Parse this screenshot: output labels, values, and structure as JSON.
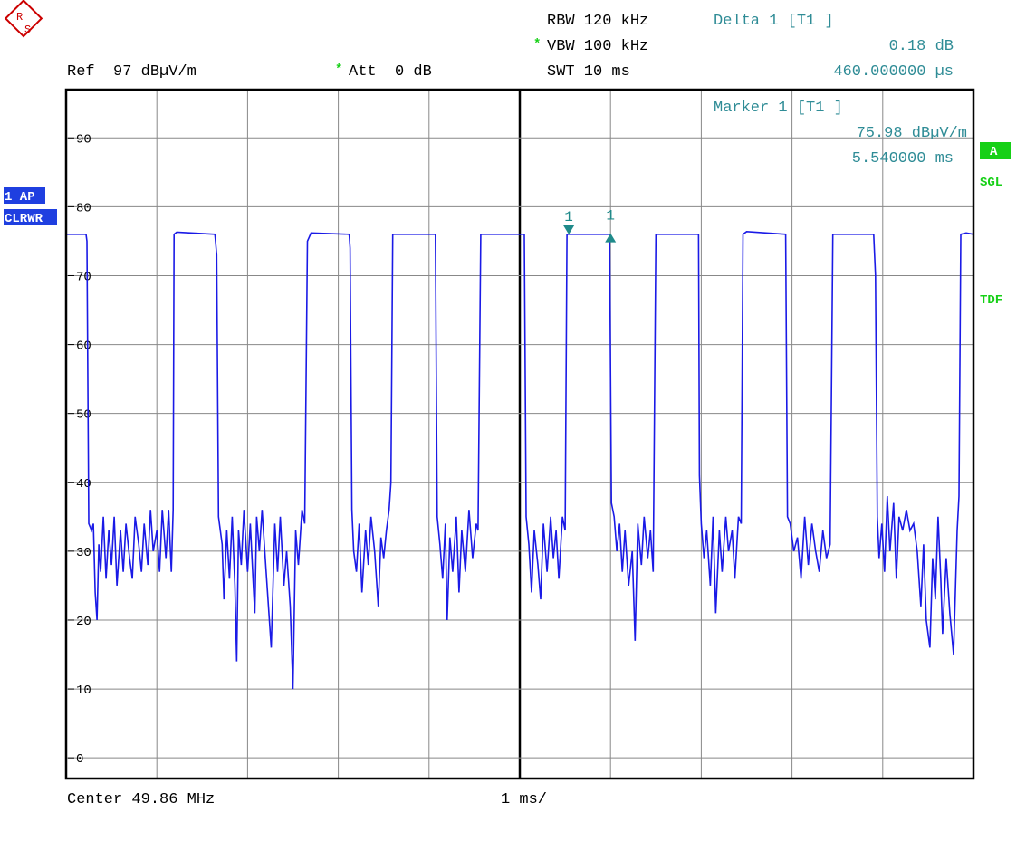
{
  "logo": [
    "R",
    "S"
  ],
  "header": {
    "rbw": "RBW 120 kHz",
    "vbw_star": "*",
    "vbw": "VBW 100 kHz",
    "swt": "SWT 10 ms",
    "ref": "Ref  97 dBµV/m",
    "att_star": "*",
    "att": "Att  0 dB",
    "delta_title": "Delta 1 [T1 ]",
    "delta_level": "0.18 dB",
    "delta_time": "460.000000 µs"
  },
  "marker_info": {
    "title": "Marker 1 [T1 ]",
    "level": "75.98 dBµV/m",
    "time": "5.540000 ms"
  },
  "side": {
    "trace": "1 AP",
    "mode": "CLRWR",
    "a": "A",
    "sgl": "SGL",
    "tdf": "TDF"
  },
  "footer": {
    "center": "Center 49.86 MHz",
    "span": "1 ms/"
  },
  "chart_data": {
    "type": "line",
    "xlim": [
      0,
      10
    ],
    "xticks": [
      0,
      1,
      2,
      3,
      4,
      5,
      6,
      7,
      8,
      9,
      10
    ],
    "ylim": [
      -3,
      97
    ],
    "yticks": [
      0,
      10,
      20,
      30,
      40,
      50,
      60,
      70,
      80,
      90
    ],
    "grid": true,
    "series": [
      {
        "color": "#1a1ae6",
        "x": [
          0,
          0.22,
          0.23,
          0.25,
          0.28,
          0.3,
          0.32,
          0.34,
          0.36,
          0.38,
          0.41,
          0.44,
          0.47,
          0.5,
          0.53,
          0.56,
          0.6,
          0.63,
          0.66,
          0.7,
          0.73,
          0.76,
          0.8,
          0.83,
          0.86,
          0.9,
          0.93,
          0.96,
          1.0,
          1.03,
          1.06,
          1.1,
          1.13,
          1.16,
          1.18,
          1.19,
          1.22,
          1.64,
          1.66,
          1.68,
          1.72,
          1.74,
          1.77,
          1.8,
          1.83,
          1.86,
          1.88,
          1.9,
          1.93,
          1.96,
          2.0,
          2.03,
          2.06,
          2.08,
          2.1,
          2.13,
          2.16,
          2.2,
          2.26,
          2.3,
          2.33,
          2.36,
          2.4,
          2.43,
          2.47,
          2.5,
          2.53,
          2.56,
          2.6,
          2.63,
          2.66,
          2.7,
          3.12,
          3.13,
          3.15,
          3.17,
          3.2,
          3.23,
          3.26,
          3.3,
          3.33,
          3.36,
          3.4,
          3.44,
          3.47,
          3.5,
          3.53,
          3.56,
          3.58,
          3.6,
          4.07,
          4.09,
          4.12,
          4.15,
          4.18,
          4.2,
          4.23,
          4.26,
          4.3,
          4.33,
          4.36,
          4.4,
          4.44,
          4.48,
          4.52,
          4.54,
          4.57,
          5.05,
          5.07,
          5.1,
          5.13,
          5.16,
          5.2,
          5.23,
          5.26,
          5.3,
          5.34,
          5.37,
          5.4,
          5.43,
          5.47,
          5.5,
          5.52,
          5.99,
          6.01,
          6.04,
          6.07,
          6.1,
          6.13,
          6.16,
          6.2,
          6.24,
          6.27,
          6.3,
          6.34,
          6.37,
          6.41,
          6.44,
          6.47,
          6.5,
          6.97,
          6.98,
          7.0,
          7.03,
          7.06,
          7.1,
          7.13,
          7.16,
          7.2,
          7.23,
          7.27,
          7.3,
          7.34,
          7.37,
          7.41,
          7.44,
          7.46,
          7.5,
          7.93,
          7.95,
          7.98,
          8.02,
          8.06,
          8.1,
          8.14,
          8.18,
          8.22,
          8.26,
          8.3,
          8.34,
          8.38,
          8.42,
          8.45,
          8.9,
          8.92,
          8.94,
          8.96,
          8.99,
          9.02,
          9.05,
          9.08,
          9.12,
          9.15,
          9.18,
          9.22,
          9.26,
          9.3,
          9.34,
          9.38,
          9.42,
          9.45,
          9.48,
          9.52,
          9.55,
          9.58,
          9.61,
          9.64,
          9.66,
          9.7,
          9.74,
          9.78,
          9.82,
          9.84,
          9.86,
          9.92,
          10
        ],
        "values": [
          76,
          76,
          75,
          34,
          33,
          34,
          24,
          20,
          31,
          27,
          35,
          26,
          33,
          28,
          35,
          25,
          33,
          27,
          34,
          29,
          26,
          35,
          31,
          27,
          34,
          28,
          36,
          30,
          33,
          27,
          36,
          29,
          36,
          27,
          36,
          76,
          76.3,
          76,
          73,
          35,
          31,
          23,
          33,
          26,
          35,
          25,
          14,
          33,
          28,
          36,
          27,
          34,
          26,
          21,
          35,
          30,
          36,
          28,
          16,
          34,
          27,
          35,
          25,
          30,
          22,
          10,
          33,
          28,
          36,
          34,
          75,
          76.2,
          76,
          74,
          36,
          30,
          27,
          34,
          24,
          33,
          28,
          35,
          30,
          22,
          32,
          29,
          33,
          36,
          40,
          76,
          76,
          35,
          31,
          26,
          34,
          20,
          32,
          27,
          35,
          24,
          33,
          27,
          36,
          29,
          34,
          33,
          76,
          76,
          35,
          31,
          24,
          33,
          28,
          23,
          34,
          27,
          35,
          29,
          33,
          26,
          35,
          33,
          76,
          76,
          37,
          35,
          30,
          34,
          27,
          33,
          25,
          30,
          17,
          34,
          28,
          35,
          29,
          33,
          27,
          76,
          76,
          41,
          34,
          29,
          33,
          25,
          35,
          21,
          33,
          27,
          35,
          30,
          33,
          26,
          35,
          34,
          76,
          76.4,
          76,
          35,
          34,
          30,
          32,
          26,
          35,
          28,
          34,
          30,
          27,
          33,
          29,
          31,
          76,
          76,
          70,
          35,
          29,
          34,
          27,
          38,
          30,
          37,
          26,
          35,
          33,
          36,
          33,
          34,
          30,
          22,
          31,
          20,
          16,
          29,
          23,
          35,
          26,
          18,
          29,
          21,
          15,
          33,
          38,
          76,
          76.2,
          76
        ]
      }
    ],
    "markers": [
      {
        "label": "1",
        "x": 5.54,
        "y": 75.98,
        "dir": "down"
      },
      {
        "label": "1",
        "x": 6.0,
        "y": 76.16,
        "dir": "up"
      }
    ],
    "marker_color": "#1f8a8a"
  }
}
